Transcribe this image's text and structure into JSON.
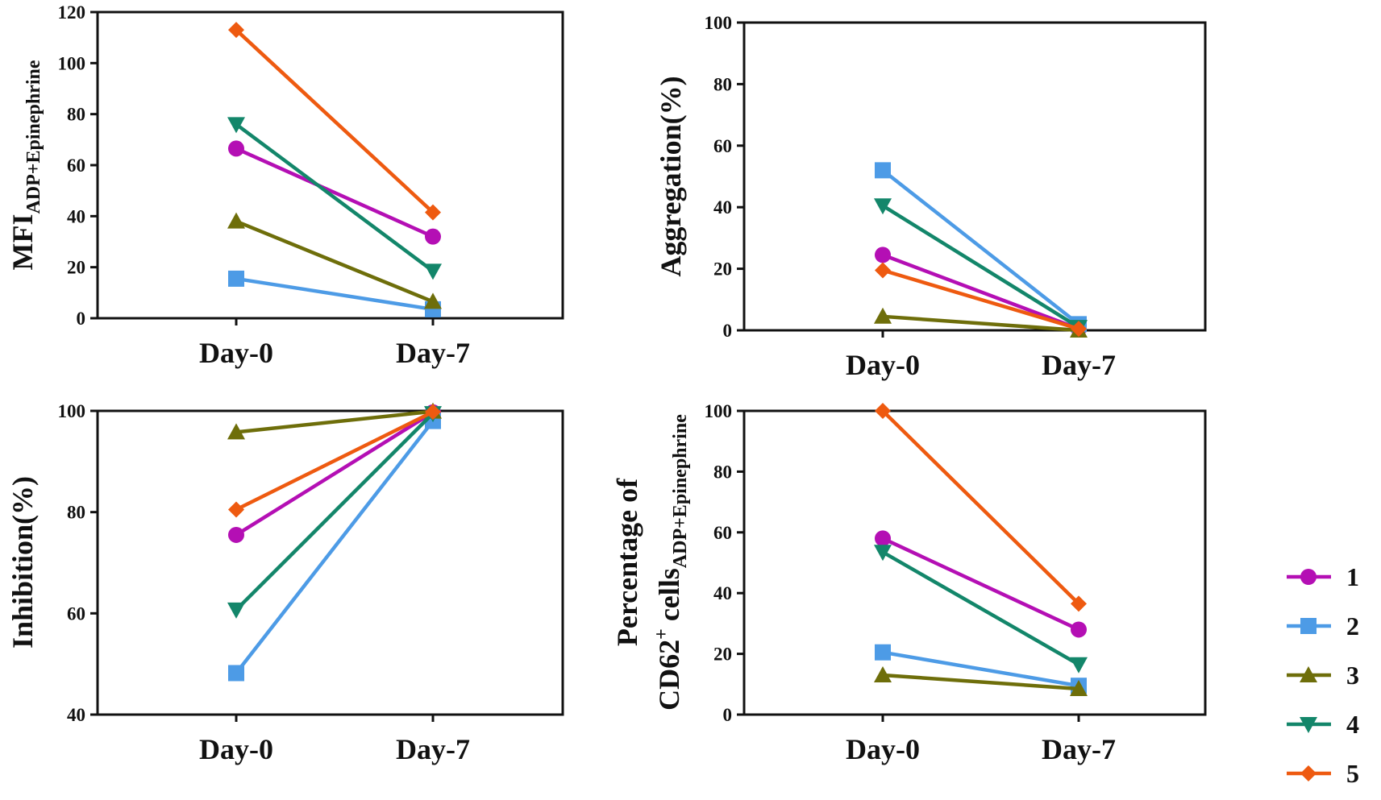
{
  "chart_data": [
    {
      "type": "line",
      "id": "mfi",
      "categories": [
        "Day-0",
        "Day-7"
      ],
      "ylim": [
        0,
        120
      ],
      "yticks": [
        "0",
        "20",
        "40",
        "60",
        "80",
        "100",
        "120"
      ],
      "ylabel": {
        "main": "MFI",
        "sub": "ADP+Epinephrine"
      },
      "series": [
        {
          "name": "1",
          "values": [
            66.5,
            32
          ]
        },
        {
          "name": "2",
          "values": [
            15.5,
            3.5
          ]
        },
        {
          "name": "3",
          "values": [
            38,
            6.5
          ]
        },
        {
          "name": "4",
          "values": [
            76,
            18.5
          ]
        },
        {
          "name": "5",
          "values": [
            113,
            41.5
          ]
        }
      ]
    },
    {
      "type": "line",
      "id": "aggregation",
      "categories": [
        "Day-0",
        "Day-7"
      ],
      "ylim": [
        0,
        100
      ],
      "yticks": [
        "0",
        "20",
        "40",
        "60",
        "80",
        "100"
      ],
      "ylabel": {
        "main": "Aggregation(%)"
      },
      "series": [
        {
          "name": "1",
          "values": [
            24.5,
            0.5
          ]
        },
        {
          "name": "2",
          "values": [
            52,
            2
          ]
        },
        {
          "name": "3",
          "values": [
            4.5,
            0
          ]
        },
        {
          "name": "4",
          "values": [
            40.5,
            1
          ]
        },
        {
          "name": "5",
          "values": [
            19.5,
            0.5
          ]
        }
      ]
    },
    {
      "type": "line",
      "id": "inhibition",
      "categories": [
        "Day-0",
        "Day-7"
      ],
      "ylim": [
        40,
        100
      ],
      "yticks": [
        "40",
        "60",
        "80",
        "100"
      ],
      "ylabel": {
        "main": "Inhibition(%)"
      },
      "series": [
        {
          "name": "1",
          "values": [
            75.5,
            99.7
          ]
        },
        {
          "name": "2",
          "values": [
            48.2,
            98
          ]
        },
        {
          "name": "3",
          "values": [
            95.8,
            99.9
          ]
        },
        {
          "name": "4",
          "values": [
            60.7,
            99.5
          ]
        },
        {
          "name": "5",
          "values": [
            80.5,
            99.8
          ]
        }
      ]
    },
    {
      "type": "line",
      "id": "cd62",
      "categories": [
        "Day-0",
        "Day-7"
      ],
      "ylim": [
        0,
        100
      ],
      "yticks": [
        "0",
        "20",
        "40",
        "60",
        "80",
        "100"
      ],
      "ylabel": {
        "line1": "Percentage of",
        "main": "CD62",
        "sup": "+",
        "mid": " cells",
        "sub": "ADP+Epinephrine"
      },
      "series": [
        {
          "name": "1",
          "values": [
            58,
            28
          ]
        },
        {
          "name": "2",
          "values": [
            20.5,
            9.5
          ]
        },
        {
          "name": "3",
          "values": [
            13,
            8.5
          ]
        },
        {
          "name": "4",
          "values": [
            53.5,
            16.5
          ]
        },
        {
          "name": "5",
          "values": [
            100,
            36.5
          ]
        }
      ]
    }
  ],
  "legend": [
    {
      "label": "1",
      "color": "#B40FB4",
      "marker": "circle"
    },
    {
      "label": "2",
      "color": "#4D9BE6",
      "marker": "square"
    },
    {
      "label": "3",
      "color": "#6E6E0A",
      "marker": "triangle-up"
    },
    {
      "label": "4",
      "color": "#13866A",
      "marker": "triangle-down"
    },
    {
      "label": "5",
      "color": "#EE5A10",
      "marker": "diamond"
    }
  ]
}
